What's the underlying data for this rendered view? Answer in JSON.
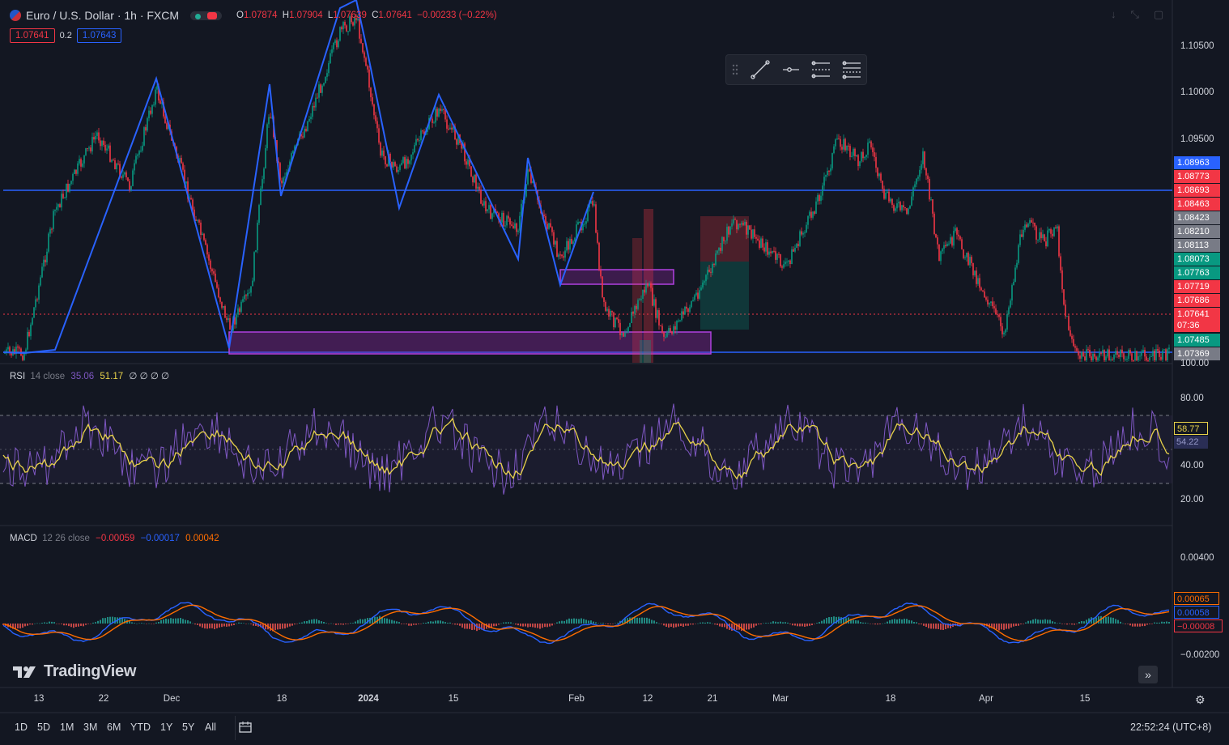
{
  "header": {
    "symbol": "Euro / U.S. Dollar · 1h · FXCM",
    "ohlc": {
      "o_label": "O",
      "o_value": "1.07874",
      "h_label": "H",
      "h_value": "1.07904",
      "l_label": "L",
      "l_value": "1.07639",
      "c_label": "C",
      "c_value": "1.07641",
      "change": "−0.00233 (−0.22%)"
    },
    "sell_price": "1.07641",
    "spread": "0.2",
    "buy_price": "1.07643"
  },
  "price_axis": {
    "ticks": [
      "1.10500",
      "1.10000",
      "1.09500"
    ],
    "tags": [
      {
        "label": "1.08963",
        "color": "#2962ff"
      },
      {
        "label": "1.08773",
        "color": "#f23645"
      },
      {
        "label": "1.08693",
        "color": "#f23645"
      },
      {
        "label": "1.08463",
        "color": "#f23645"
      },
      {
        "label": "1.08423",
        "color": "#787b86"
      },
      {
        "label": "1.08210",
        "color": "#787b86"
      },
      {
        "label": "1.08113",
        "color": "#787b86"
      },
      {
        "label": "1.08073",
        "color": "#089981"
      },
      {
        "label": "1.07763",
        "color": "#089981"
      },
      {
        "label": "1.07719",
        "color": "#f23645"
      },
      {
        "label": "1.07686",
        "color": "#f23645"
      },
      {
        "label": "1.07641",
        "color": "#f23645"
      },
      {
        "label": "07:36",
        "color": "#f23645"
      },
      {
        "label": "1.07485",
        "color": "#089981"
      },
      {
        "label": "1.07369",
        "color": "#787b86"
      }
    ],
    "bottom_tick": "100.00"
  },
  "rsi": {
    "label": "RSI",
    "params": "14 close",
    "value1": "35.06",
    "value2": "51.17",
    "value_rest": "∅ ∅ ∅ ∅",
    "ticks": [
      "80.00",
      "40.00",
      "20.00"
    ],
    "tag_yellow": "58.77",
    "tag_purple": "54.22"
  },
  "macd": {
    "label": "MACD",
    "params": "12 26 close",
    "hist": "−0.00059",
    "macd_line": "−0.00017",
    "signal": "0.00042",
    "ticks": [
      "0.00400",
      "−0.00200"
    ],
    "tag_orange": "0.00065",
    "tag_blue": "0.00058",
    "tag_red": "−0.00008"
  },
  "time_axis": [
    "13",
    "22",
    "Dec",
    "18",
    "2024",
    "15",
    "Feb",
    "12",
    "21",
    "Mar",
    "18",
    "Apr",
    "15"
  ],
  "ranges": [
    "1D",
    "5D",
    "1M",
    "3M",
    "6M",
    "YTD",
    "1Y",
    "5Y",
    "All"
  ],
  "clock": "22:52:24 (UTC+8)",
  "brand": "TradingView",
  "drawing_toolbar": [
    "drag-handle",
    "trend-line-icon",
    "horizontal-ray-icon",
    "parallel-channel-icon",
    "fib-icon"
  ]
}
